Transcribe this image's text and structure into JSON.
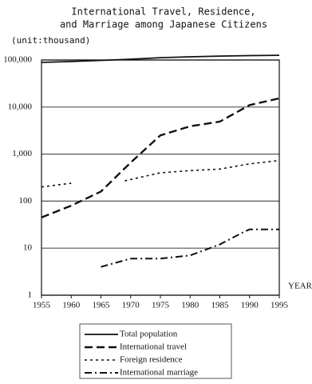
{
  "chart_data": {
    "type": "line",
    "title": [
      "International Travel, Residence,",
      "and Marriage among Japanese Citizens"
    ],
    "y_unit": "(unit:thousand)",
    "x_label": "YEAR",
    "log_y": true,
    "grid": true,
    "xlim": [
      1955,
      1995
    ],
    "xticks": [
      1955,
      1960,
      1965,
      1970,
      1975,
      1980,
      1985,
      1990,
      1995
    ],
    "ylim": [
      1,
      100000
    ],
    "yticks": [
      1,
      10,
      100,
      {
        "value": 1000,
        "label": "1,000"
      },
      {
        "value": 10000,
        "label": "10,000"
      },
      {
        "value": 100000,
        "label": "100,000"
      }
    ],
    "legend": "bottom",
    "series": [
      {
        "name": "Total population",
        "color": "#111111",
        "style": "solid",
        "x": [
          1955,
          1960,
          1965,
          1970,
          1975,
          1980,
          1985,
          1990,
          1995
        ],
        "values": [
          89000,
          93000,
          98000,
          104000,
          112000,
          117000,
          121000,
          124000,
          126000
        ]
      },
      {
        "name": "International travel",
        "color": "#111111",
        "style": "dashed",
        "x": [
          1955,
          1960,
          1965,
          1970,
          1975,
          1980,
          1985,
          1990,
          1995
        ],
        "values": [
          45,
          80,
          160,
          660,
          2500,
          3900,
          4900,
          11000,
          15300
        ]
      },
      {
        "name": "Foreign residence",
        "color": "#111111",
        "style": "dotted",
        "x": [
          1955,
          1960,
          1965,
          1969,
          1975,
          1980,
          1985,
          1990,
          1995
        ],
        "values": [
          200,
          240,
          null,
          270,
          400,
          445,
          480,
          620,
          730
        ]
      },
      {
        "name": "International marriage",
        "color": "#111111",
        "style": "dashdot",
        "x": [
          1965,
          1970,
          1975,
          1980,
          1985,
          1989,
          1990,
          1995
        ],
        "values": [
          4,
          6,
          6,
          7,
          12,
          22,
          25,
          25
        ]
      }
    ]
  }
}
